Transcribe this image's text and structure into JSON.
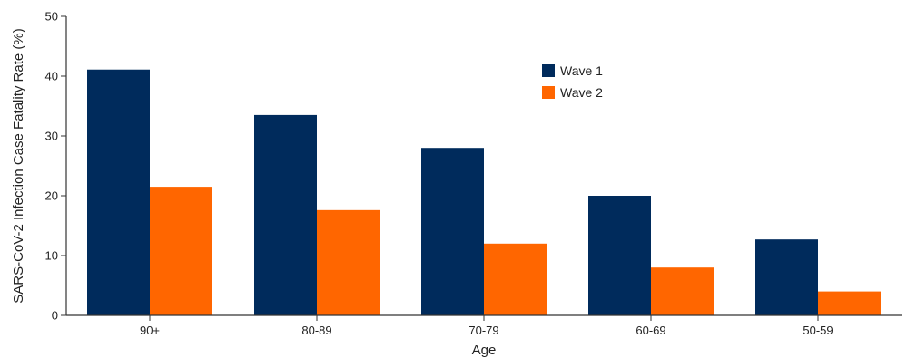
{
  "chart_data": {
    "type": "bar",
    "categories": [
      "90+",
      "80-89",
      "70-79",
      "60-69",
      "50-59"
    ],
    "series": [
      {
        "name": "Wave 1",
        "color": "#002B5C",
        "values": [
          41.1,
          33.5,
          28.0,
          20.0,
          12.7
        ]
      },
      {
        "name": "Wave 2",
        "color": "#FF6600",
        "values": [
          21.5,
          17.6,
          12.0,
          8.0,
          4.0
        ]
      }
    ],
    "title": "",
    "xlabel": "Age",
    "ylabel": "SARS-CoV-2 Infection Case Fatality Rate (%)",
    "ylim": [
      0,
      50
    ],
    "yticks": [
      0,
      10,
      20,
      30,
      40,
      50
    ],
    "grid": false,
    "legend_position": "top-right"
  }
}
